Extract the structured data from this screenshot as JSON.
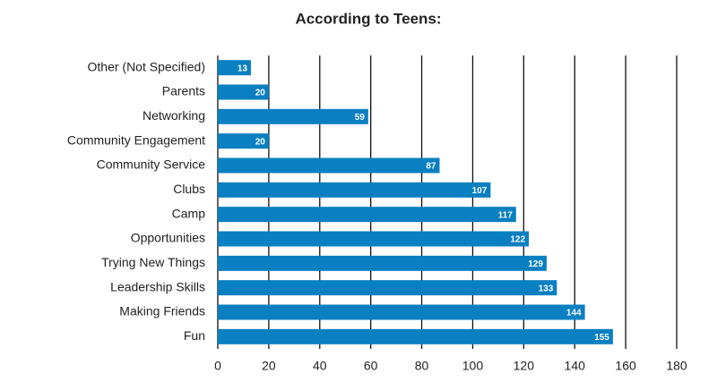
{
  "chart_data": {
    "type": "barh",
    "title": "According to Teens:",
    "categories": [
      "Other (Not Specified)",
      "Parents",
      "Networking",
      "Community Engagement",
      "Community Service",
      "Clubs",
      "Camp",
      "Opportunities",
      "Trying New Things",
      "Leadership Skills",
      "Making Friends",
      "Fun"
    ],
    "values": [
      13,
      20,
      59,
      20,
      87,
      107,
      117,
      122,
      129,
      133,
      144,
      155
    ],
    "color": "#0a7fc1",
    "xlim": [
      0,
      180
    ],
    "xticks": [
      0,
      20,
      40,
      60,
      80,
      100,
      120,
      140,
      160,
      180
    ],
    "grid": true
  }
}
